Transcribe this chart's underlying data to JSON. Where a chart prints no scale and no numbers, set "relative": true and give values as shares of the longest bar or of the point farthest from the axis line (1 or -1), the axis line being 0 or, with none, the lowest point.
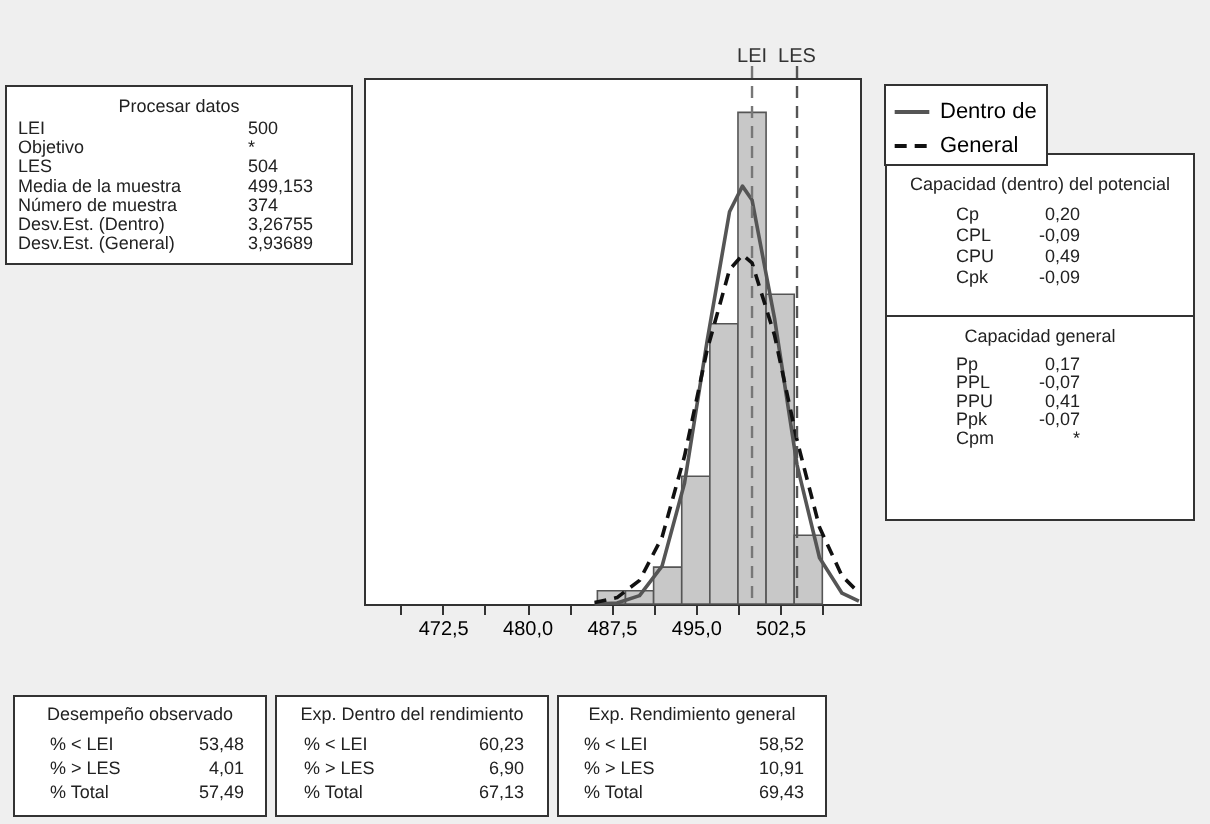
{
  "chart_data": {
    "type": "histogram",
    "relative": true,
    "bins": [
      486.25,
      488.75,
      491.25,
      493.75,
      496.25,
      498.75,
      501.25,
      503.75,
      506.25
    ],
    "values": [
      0.027,
      0.027,
      0.075,
      0.26,
      0.57,
      1,
      0.63,
      0.14
    ],
    "color": "#c8c8c8",
    "series": [
      {
        "name": "Dentro de",
        "type": "line",
        "color": "#555555",
        "line_style": "solid",
        "x": [
          486,
          488,
          490,
          492,
          494,
          496,
          498,
          499.15,
          500,
          502,
          504,
          506,
          508,
          509.5
        ],
        "values": [
          0.0,
          0.002,
          0.017,
          0.077,
          0.246,
          0.534,
          0.798,
          0.85,
          0.822,
          0.581,
          0.283,
          0.094,
          0.022,
          0.006
        ]
      },
      {
        "name": "General",
        "type": "line",
        "color": "#111111",
        "line_style": "dashed",
        "x": [
          486,
          488,
          490,
          492,
          494,
          496,
          498,
          499.15,
          500,
          502,
          504,
          506,
          508,
          509.5
        ],
        "values": [
          0.003,
          0.013,
          0.048,
          0.136,
          0.301,
          0.516,
          0.68,
          0.71,
          0.694,
          0.547,
          0.333,
          0.156,
          0.057,
          0.023
        ]
      }
    ],
    "xlim": [
      465.5,
      509.6
    ],
    "xticks": [
      {
        "value": 468.75,
        "label": null
      },
      {
        "value": 472.5,
        "label": "472,5"
      },
      {
        "value": 476.25,
        "label": null
      },
      {
        "value": 480,
        "label": "480,0"
      },
      {
        "value": 483.75,
        "label": null
      },
      {
        "value": 487.5,
        "label": "487,5"
      },
      {
        "value": 491.25,
        "label": null
      },
      {
        "value": 495,
        "label": "495,0"
      },
      {
        "value": 498.75,
        "label": null
      },
      {
        "value": 502.5,
        "label": "502,5"
      },
      {
        "value": 506.25,
        "label": null
      }
    ],
    "ref_lines": [
      {
        "axis": "x",
        "value": 500,
        "label": "LEI",
        "color": "#777777",
        "line_style": "dashed"
      },
      {
        "axis": "x",
        "value": 504,
        "label": "LES",
        "color": "#555555",
        "line_style": "dashed"
      }
    ],
    "grid": false,
    "legend": "top right",
    "annotations": [
      "Procesar datos",
      "LEI 500",
      "Objetivo *",
      "LES 504",
      "Media de la muestra 499,153",
      "Número de muestra 374",
      "Desv.Est. (Dentro) 3,26755",
      "Desv.Est. (General) 3,93689",
      "Capacidad (dentro) del potencial",
      "Cp 0,20",
      "CPL -0,09",
      "CPU 0,49",
      "Cpk -0,09",
      "Capacidad general",
      "Pp 0,17",
      "PPL -0,07",
      "PPU 0,41",
      "Ppk -0,07",
      "Cpm *",
      "Desempeño observado",
      "% < LEI 53,48",
      "% > LES 4,01",
      "% Total 57,49",
      "Exp. Dentro del rendimiento",
      "% < LEI 60,23",
      "% > LES 6,90",
      "% Total 67,13",
      "Exp. Rendimiento general",
      "% < LEI 58,52",
      "% > LES 10,91",
      "% Total 69,43"
    ]
  }
}
